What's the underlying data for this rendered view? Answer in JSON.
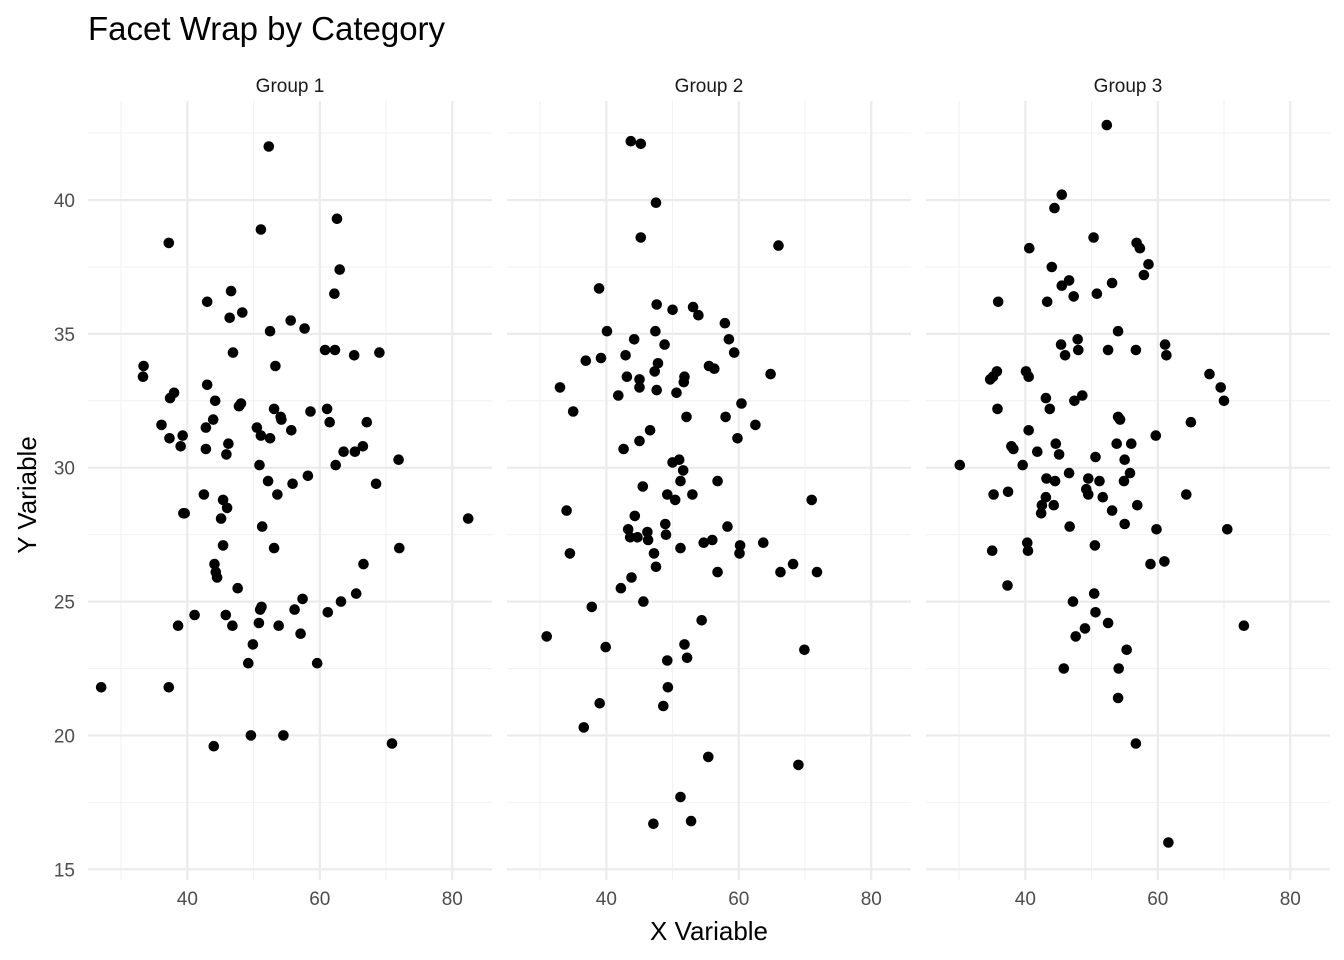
{
  "chart_data": {
    "type": "scatter",
    "title": "Facet Wrap by Category",
    "xlabel": "X Variable",
    "ylabel": "Y Variable",
    "xlim": [
      25,
      86
    ],
    "ylim": [
      14.6,
      43.7
    ],
    "x_ticks": [
      40,
      60,
      80
    ],
    "x_ticks_minor": [
      30,
      50,
      70
    ],
    "y_ticks": [
      15,
      20,
      25,
      30,
      35,
      40
    ],
    "y_ticks_minor": [
      17.5,
      22.5,
      27.5,
      32.5,
      37.5,
      42.5
    ],
    "grid": true,
    "colors": {
      "points": "#000000",
      "grid": "#ebebeb",
      "text": "#4d4d4d"
    },
    "facets": [
      {
        "name": "Group 1",
        "points": [
          [
            52.3,
            42.0
          ],
          [
            51.1,
            38.9
          ],
          [
            62.6,
            39.3
          ],
          [
            37.2,
            38.4
          ],
          [
            63.0,
            37.4
          ],
          [
            46.6,
            36.6
          ],
          [
            43.0,
            36.2
          ],
          [
            48.3,
            35.8
          ],
          [
            62.2,
            36.5
          ],
          [
            46.4,
            35.6
          ],
          [
            55.6,
            35.5
          ],
          [
            57.7,
            35.2
          ],
          [
            52.5,
            35.1
          ],
          [
            46.9,
            34.3
          ],
          [
            60.8,
            34.4
          ],
          [
            62.3,
            34.4
          ],
          [
            65.2,
            34.2
          ],
          [
            69.0,
            34.3
          ],
          [
            33.4,
            33.8
          ],
          [
            33.3,
            33.4
          ],
          [
            53.3,
            33.8
          ],
          [
            43.0,
            33.1
          ],
          [
            37.4,
            32.6
          ],
          [
            38.0,
            32.8
          ],
          [
            44.2,
            32.5
          ],
          [
            47.8,
            32.3
          ],
          [
            48.1,
            32.4
          ],
          [
            53.1,
            32.2
          ],
          [
            54.1,
            31.9
          ],
          [
            58.6,
            32.1
          ],
          [
            61.1,
            32.2
          ],
          [
            36.1,
            31.6
          ],
          [
            42.8,
            31.5
          ],
          [
            43.9,
            31.8
          ],
          [
            50.5,
            31.5
          ],
          [
            51.1,
            31.2
          ],
          [
            54.2,
            31.8
          ],
          [
            55.7,
            31.4
          ],
          [
            61.5,
            31.7
          ],
          [
            67.1,
            31.7
          ],
          [
            37.3,
            31.1
          ],
          [
            39.3,
            31.2
          ],
          [
            39.0,
            30.8
          ],
          [
            42.8,
            30.7
          ],
          [
            46.2,
            30.9
          ],
          [
            45.9,
            30.5
          ],
          [
            52.5,
            31.1
          ],
          [
            63.6,
            30.6
          ],
          [
            65.3,
            30.6
          ],
          [
            66.5,
            30.8
          ],
          [
            50.9,
            30.1
          ],
          [
            62.4,
            30.1
          ],
          [
            71.9,
            30.3
          ],
          [
            52.2,
            29.5
          ],
          [
            53.6,
            29.0
          ],
          [
            55.9,
            29.4
          ],
          [
            58.2,
            29.7
          ],
          [
            68.5,
            29.4
          ],
          [
            42.5,
            29.0
          ],
          [
            45.4,
            28.8
          ],
          [
            46.0,
            28.5
          ],
          [
            39.4,
            28.3
          ],
          [
            39.6,
            28.3
          ],
          [
            45.1,
            28.1
          ],
          [
            51.3,
            27.8
          ],
          [
            82.4,
            28.1
          ],
          [
            45.4,
            27.1
          ],
          [
            53.1,
            27.0
          ],
          [
            72.0,
            27.0
          ],
          [
            44.1,
            26.4
          ],
          [
            44.3,
            26.1
          ],
          [
            44.5,
            25.9
          ],
          [
            66.6,
            26.4
          ],
          [
            47.6,
            25.5
          ],
          [
            57.4,
            25.1
          ],
          [
            65.5,
            25.3
          ],
          [
            63.2,
            25.0
          ],
          [
            51.2,
            24.8
          ],
          [
            51.0,
            24.7
          ],
          [
            56.2,
            24.7
          ],
          [
            41.1,
            24.5
          ],
          [
            45.8,
            24.5
          ],
          [
            61.2,
            24.6
          ],
          [
            38.6,
            24.1
          ],
          [
            46.8,
            24.1
          ],
          [
            50.8,
            24.2
          ],
          [
            53.8,
            24.1
          ],
          [
            57.1,
            23.8
          ],
          [
            49.9,
            23.4
          ],
          [
            49.2,
            22.7
          ],
          [
            59.6,
            22.7
          ],
          [
            27.0,
            21.8
          ],
          [
            37.2,
            21.8
          ],
          [
            49.6,
            20.0
          ],
          [
            54.5,
            20.0
          ],
          [
            44.0,
            19.6
          ],
          [
            70.9,
            19.7
          ]
        ]
      },
      {
        "name": "Group 2",
        "points": [
          [
            43.7,
            42.2
          ],
          [
            45.2,
            42.1
          ],
          [
            47.5,
            39.9
          ],
          [
            45.2,
            38.6
          ],
          [
            66.0,
            38.3
          ],
          [
            38.9,
            36.7
          ],
          [
            47.6,
            36.1
          ],
          [
            50.0,
            35.9
          ],
          [
            53.1,
            36.0
          ],
          [
            53.9,
            35.7
          ],
          [
            57.9,
            35.4
          ],
          [
            40.1,
            35.1
          ],
          [
            47.4,
            35.1
          ],
          [
            44.2,
            34.8
          ],
          [
            58.5,
            34.8
          ],
          [
            48.8,
            34.6
          ],
          [
            59.3,
            34.3
          ],
          [
            36.9,
            34.0
          ],
          [
            39.2,
            34.1
          ],
          [
            42.9,
            34.2
          ],
          [
            47.8,
            33.9
          ],
          [
            55.5,
            33.8
          ],
          [
            56.3,
            33.7
          ],
          [
            47.3,
            33.6
          ],
          [
            43.1,
            33.4
          ],
          [
            45.0,
            33.3
          ],
          [
            51.7,
            33.2
          ],
          [
            51.8,
            33.4
          ],
          [
            64.8,
            33.5
          ],
          [
            33.0,
            33.0
          ],
          [
            45.0,
            33.0
          ],
          [
            47.6,
            32.9
          ],
          [
            50.6,
            32.8
          ],
          [
            41.8,
            32.7
          ],
          [
            60.4,
            32.4
          ],
          [
            35.0,
            32.1
          ],
          [
            52.1,
            31.9
          ],
          [
            58.0,
            31.9
          ],
          [
            62.5,
            31.6
          ],
          [
            46.6,
            31.4
          ],
          [
            45.0,
            31.0
          ],
          [
            59.8,
            31.1
          ],
          [
            42.6,
            30.7
          ],
          [
            51.0,
            30.3
          ],
          [
            50.0,
            30.2
          ],
          [
            51.6,
            29.9
          ],
          [
            56.8,
            29.5
          ],
          [
            51.2,
            29.5
          ],
          [
            45.5,
            29.3
          ],
          [
            49.2,
            29.0
          ],
          [
            53.0,
            29.0
          ],
          [
            50.4,
            28.8
          ],
          [
            71.0,
            28.8
          ],
          [
            34.0,
            28.4
          ],
          [
            44.3,
            28.2
          ],
          [
            48.9,
            27.9
          ],
          [
            58.3,
            27.8
          ],
          [
            43.3,
            27.7
          ],
          [
            46.2,
            27.6
          ],
          [
            44.7,
            27.4
          ],
          [
            49.0,
            27.5
          ],
          [
            43.6,
            27.4
          ],
          [
            46.3,
            27.3
          ],
          [
            56.0,
            27.3
          ],
          [
            54.7,
            27.2
          ],
          [
            63.7,
            27.2
          ],
          [
            60.2,
            27.1
          ],
          [
            51.2,
            27.0
          ],
          [
            47.2,
            26.8
          ],
          [
            60.1,
            26.8
          ],
          [
            34.5,
            26.8
          ],
          [
            68.2,
            26.4
          ],
          [
            47.5,
            26.3
          ],
          [
            56.8,
            26.1
          ],
          [
            66.3,
            26.1
          ],
          [
            71.8,
            26.1
          ],
          [
            43.8,
            25.9
          ],
          [
            42.2,
            25.5
          ],
          [
            45.6,
            25.0
          ],
          [
            37.8,
            24.8
          ],
          [
            54.4,
            24.3
          ],
          [
            31.0,
            23.7
          ],
          [
            51.8,
            23.4
          ],
          [
            39.9,
            23.3
          ],
          [
            52.2,
            22.9
          ],
          [
            69.9,
            23.2
          ],
          [
            49.2,
            22.8
          ],
          [
            49.3,
            21.8
          ],
          [
            39.0,
            21.2
          ],
          [
            48.6,
            21.1
          ],
          [
            36.6,
            20.3
          ],
          [
            55.4,
            19.2
          ],
          [
            69.0,
            18.9
          ],
          [
            51.2,
            17.7
          ],
          [
            47.1,
            16.7
          ],
          [
            52.8,
            16.8
          ]
        ]
      },
      {
        "name": "Group 3",
        "points": [
          [
            52.3,
            42.8
          ],
          [
            45.5,
            40.2
          ],
          [
            44.4,
            39.7
          ],
          [
            50.3,
            38.6
          ],
          [
            56.8,
            38.4
          ],
          [
            57.3,
            38.2
          ],
          [
            40.6,
            38.2
          ],
          [
            58.6,
            37.6
          ],
          [
            57.9,
            37.2
          ],
          [
            44.0,
            37.5
          ],
          [
            46.6,
            37.0
          ],
          [
            45.5,
            36.8
          ],
          [
            53.1,
            36.9
          ],
          [
            50.8,
            36.5
          ],
          [
            47.3,
            36.4
          ],
          [
            43.3,
            36.2
          ],
          [
            35.9,
            36.2
          ],
          [
            54.0,
            35.1
          ],
          [
            47.9,
            34.8
          ],
          [
            45.4,
            34.6
          ],
          [
            61.1,
            34.6
          ],
          [
            46.0,
            34.2
          ],
          [
            48.0,
            34.4
          ],
          [
            52.5,
            34.4
          ],
          [
            56.7,
            34.4
          ],
          [
            61.3,
            34.2
          ],
          [
            35.7,
            33.6
          ],
          [
            40.1,
            33.6
          ],
          [
            34.7,
            33.3
          ],
          [
            35.1,
            33.4
          ],
          [
            40.5,
            33.4
          ],
          [
            67.8,
            33.5
          ],
          [
            69.5,
            33.0
          ],
          [
            43.1,
            32.6
          ],
          [
            48.6,
            32.7
          ],
          [
            47.4,
            32.5
          ],
          [
            70.0,
            32.5
          ],
          [
            35.8,
            32.2
          ],
          [
            43.7,
            32.2
          ],
          [
            54.0,
            31.9
          ],
          [
            54.3,
            31.8
          ],
          [
            65.0,
            31.7
          ],
          [
            40.5,
            31.4
          ],
          [
            59.7,
            31.2
          ],
          [
            53.8,
            30.9
          ],
          [
            56.0,
            30.9
          ],
          [
            37.9,
            30.8
          ],
          [
            44.6,
            30.9
          ],
          [
            38.2,
            30.7
          ],
          [
            41.8,
            30.6
          ],
          [
            45.1,
            30.5
          ],
          [
            50.6,
            30.4
          ],
          [
            55.0,
            30.3
          ],
          [
            30.1,
            30.1
          ],
          [
            39.6,
            30.1
          ],
          [
            46.6,
            29.8
          ],
          [
            55.8,
            29.8
          ],
          [
            43.2,
            29.6
          ],
          [
            49.5,
            29.6
          ],
          [
            51.2,
            29.5
          ],
          [
            44.5,
            29.5
          ],
          [
            49.2,
            29.2
          ],
          [
            54.9,
            29.5
          ],
          [
            35.2,
            29.0
          ],
          [
            37.4,
            29.1
          ],
          [
            43.1,
            28.9
          ],
          [
            49.5,
            29.0
          ],
          [
            51.7,
            28.9
          ],
          [
            64.3,
            29.0
          ],
          [
            42.5,
            28.6
          ],
          [
            44.3,
            28.6
          ],
          [
            56.9,
            28.6
          ],
          [
            42.4,
            28.3
          ],
          [
            53.1,
            28.4
          ],
          [
            46.7,
            27.8
          ],
          [
            55.0,
            27.9
          ],
          [
            59.8,
            27.7
          ],
          [
            70.5,
            27.7
          ],
          [
            40.3,
            27.2
          ],
          [
            50.5,
            27.1
          ],
          [
            40.4,
            26.9
          ],
          [
            35.0,
            26.9
          ],
          [
            58.9,
            26.4
          ],
          [
            61.0,
            26.5
          ],
          [
            37.3,
            25.6
          ],
          [
            50.4,
            25.3
          ],
          [
            47.2,
            25.0
          ],
          [
            50.6,
            24.6
          ],
          [
            52.5,
            24.2
          ],
          [
            73.0,
            24.1
          ],
          [
            49.0,
            24.0
          ],
          [
            47.6,
            23.7
          ],
          [
            55.3,
            23.2
          ],
          [
            45.8,
            22.5
          ],
          [
            54.1,
            22.5
          ],
          [
            54.0,
            21.4
          ],
          [
            56.7,
            19.7
          ],
          [
            61.6,
            16.0
          ]
        ]
      }
    ]
  }
}
